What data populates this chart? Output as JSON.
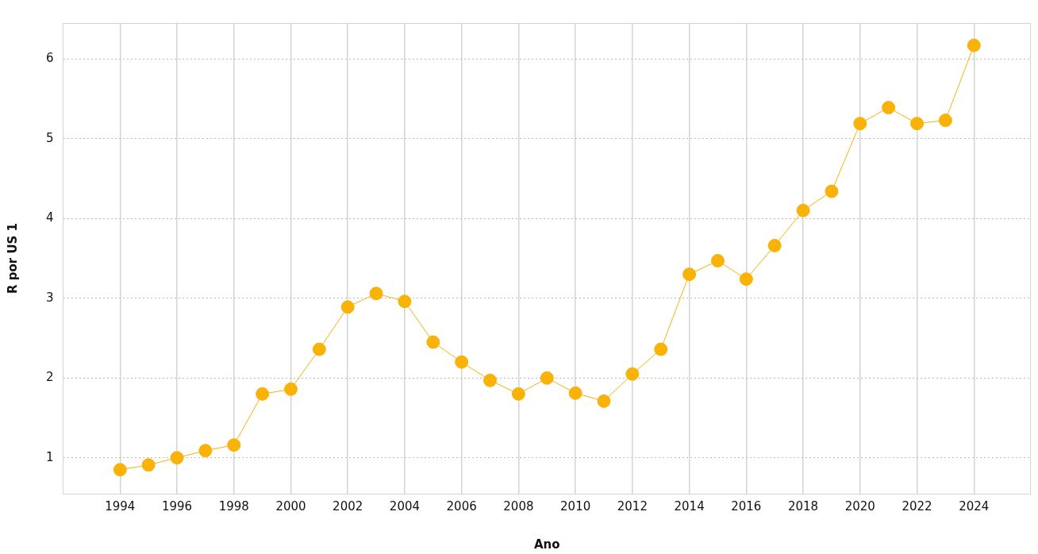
{
  "chart_data": {
    "type": "line",
    "xlabel": "Ano",
    "ylabel": "R por US 1",
    "x": [
      1994,
      1995,
      1996,
      1997,
      1998,
      1999,
      2000,
      2001,
      2002,
      2003,
      2004,
      2005,
      2006,
      2007,
      2008,
      2009,
      2010,
      2011,
      2012,
      2013,
      2014,
      2015,
      2016,
      2017,
      2018,
      2019,
      2020,
      2021,
      2022,
      2023,
      2024
    ],
    "series": [
      {
        "color": "#f9b208",
        "values": [
          0.85,
          0.91,
          1.0,
          1.09,
          1.16,
          1.8,
          1.86,
          2.36,
          2.89,
          3.06,
          2.96,
          2.45,
          2.2,
          1.97,
          1.8,
          2.0,
          1.81,
          1.71,
          2.05,
          2.36,
          3.3,
          3.47,
          3.24,
          3.66,
          4.1,
          4.34,
          5.19,
          5.39,
          5.19,
          5.23,
          6.17
        ]
      }
    ],
    "xlim": [
      1992,
      2026
    ],
    "xticks": [
      1994,
      1996,
      1998,
      2000,
      2002,
      2004,
      2006,
      2008,
      2010,
      2012,
      2014,
      2016,
      2018,
      2020,
      2022,
      2024
    ],
    "ylim": [
      0.55,
      6.45
    ],
    "yticks": [
      1,
      2,
      3,
      4,
      5,
      6
    ],
    "grid": true,
    "legend": false,
    "marker": "circle",
    "line_style": "solid"
  }
}
